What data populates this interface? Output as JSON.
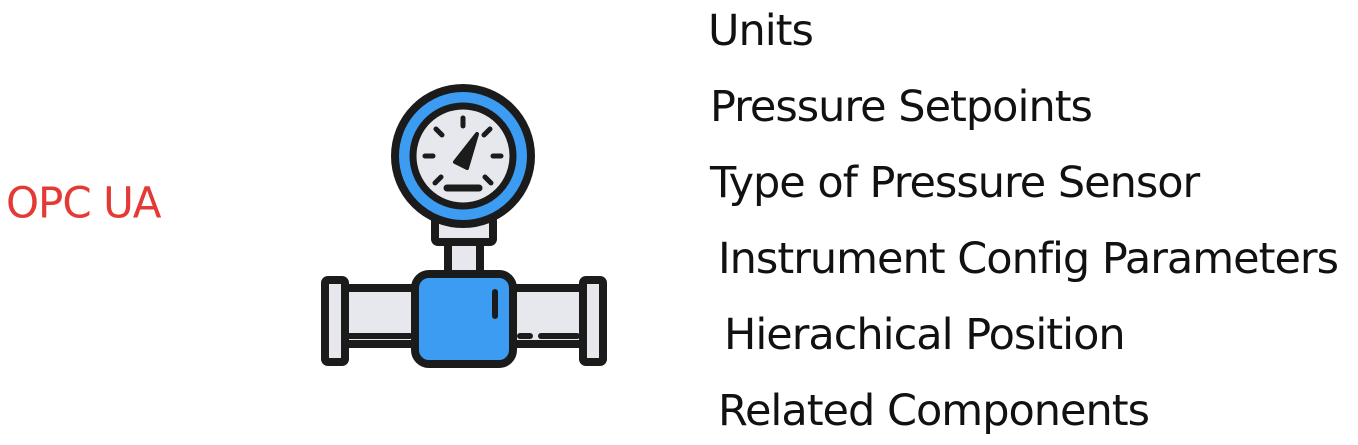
{
  "title": {
    "text": "OPC UA",
    "color": "#e53935"
  },
  "illustration": {
    "name": "pressure-gauge-on-pipe",
    "outline_color": "#1b1b1b",
    "accent_color": "#3b9cf2",
    "fill_color": "#e6e8ee"
  },
  "attributes": [
    {
      "label": "Units"
    },
    {
      "label": "Pressure Setpoints"
    },
    {
      "label": "Type of Pressure Sensor"
    },
    {
      "label": "Instrument Config Parameters"
    },
    {
      "label": "Hierachical Position"
    },
    {
      "label": "Related Components"
    }
  ]
}
